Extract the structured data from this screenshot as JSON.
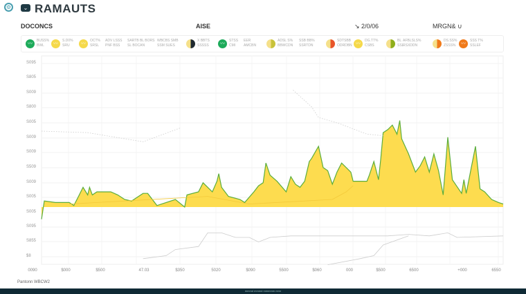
{
  "header": {
    "brand": "RAMAUTS",
    "icons": [
      "gear-icon",
      "chevron-down-icon"
    ]
  },
  "subheader": {
    "left": "DOCONCS",
    "center": "AISE",
    "date": "↘ 2/0/06",
    "right": "MRGN& ∪"
  },
  "legend": [
    {
      "icon": "wave",
      "color": "#1daa5a",
      "l1": "BUSS%",
      "l2": "BWL"
    },
    {
      "icon": "wave",
      "color": "#f5d94a",
      "l1": "S.D0%",
      "l2": "SRU"
    },
    {
      "icon": "wave",
      "color": "#f5d94a",
      "l1": "OCT%",
      "l2": "SRSL"
    },
    {
      "icon": "",
      "color": "",
      "l1": "ADV LSSS",
      "l2": "PNF BSS"
    },
    {
      "icon": "",
      "color": "",
      "l1": "SARTB BL BORS",
      "l2": "SL BOCAN"
    },
    {
      "icon": "",
      "color": "",
      "l1": "WBCBS SMB",
      "l2": "SSM SUES"
    },
    {
      "icon": "half",
      "color": "#1f2a30",
      "l1": "X BBTS",
      "l2": "SSSSS"
    },
    {
      "icon": "wave",
      "color": "#1daa5a",
      "l1": "STSS",
      "l2": "CMI"
    },
    {
      "icon": "",
      "color": "",
      "l1": "EER",
      "l2": "AMCBN"
    },
    {
      "icon": "half",
      "color": "#c8c23a",
      "l1": "ADSL S%",
      "l2": "BBWCDN"
    },
    {
      "icon": "",
      "color": "",
      "l1": "SSB BB%",
      "l2": "SSRTDN"
    },
    {
      "icon": "half",
      "color": "#e8552a",
      "l1": "SDTSBB",
      "l2": "ODRDBN"
    },
    {
      "icon": "wave",
      "color": "#f5d94a",
      "l1": "DG.TT%",
      "l2": "CSBS"
    },
    {
      "icon": "half",
      "color": "#8fae1b",
      "l1": "BL",
      "l2": "SSL"
    },
    {
      "icon": "",
      "color": "",
      "l1": "AFBLSLS%",
      "l2": "RSXDDN"
    },
    {
      "icon": "half",
      "color": "#f07a1a",
      "l1": "DS.SS%",
      "l2": "ZSSS%"
    },
    {
      "icon": "wave",
      "color": "#f07a1a",
      "l1": "SSS T%",
      "l2": "SSLEF"
    }
  ],
  "chart_data": {
    "type": "area",
    "title": "",
    "xlim": [
      0,
      100
    ],
    "ylim": [
      -38,
      100
    ],
    "grid": true,
    "yticks": [
      "S095",
      "S805",
      "S009",
      "S800",
      "S005",
      "S009",
      "S009",
      "S509",
      "S009",
      "S005",
      "S005",
      "S095",
      "S855",
      "$8"
    ],
    "xticks": [
      "0090",
      "$000",
      "$500",
      "47.03",
      "$350",
      "5020",
      "$090",
      "5500",
      "$060",
      "000",
      "$500",
      "6500",
      "+000",
      "6550"
    ],
    "colors": {
      "fill": "#fddc4f",
      "line": "#5aad3c",
      "secondary": "#cccccc"
    },
    "series": [
      {
        "kind": "main",
        "points": [
          [
            0,
            -8
          ],
          [
            0.6,
            4
          ],
          [
            3,
            3
          ],
          [
            6,
            3
          ],
          [
            7,
            1
          ],
          [
            8,
            7
          ],
          [
            9,
            13
          ],
          [
            10,
            8
          ],
          [
            10.4,
            13
          ],
          [
            11,
            8
          ],
          [
            12,
            10
          ],
          [
            15,
            10
          ],
          [
            16.5,
            8
          ],
          [
            18,
            5
          ],
          [
            19.5,
            4
          ],
          [
            22,
            9
          ],
          [
            23,
            9
          ],
          [
            25,
            1
          ],
          [
            27,
            3
          ],
          [
            29,
            5
          ],
          [
            31,
            0
          ],
          [
            31.5,
            8
          ],
          [
            34,
            10
          ],
          [
            35,
            16
          ],
          [
            37,
            10
          ],
          [
            38,
            17
          ],
          [
            38.4,
            22
          ],
          [
            39,
            13
          ],
          [
            40.5,
            7
          ],
          [
            43,
            5
          ],
          [
            44,
            3
          ],
          [
            46,
            10
          ],
          [
            47,
            14
          ],
          [
            48,
            16
          ],
          [
            48.6,
            29
          ],
          [
            49.5,
            21
          ],
          [
            51,
            17
          ],
          [
            53,
            10
          ],
          [
            54,
            20
          ],
          [
            55,
            15
          ],
          [
            56,
            13
          ],
          [
            57,
            17
          ],
          [
            58,
            30
          ],
          [
            58.5,
            32
          ],
          [
            60,
            40
          ],
          [
            61,
            26
          ],
          [
            62,
            24
          ],
          [
            63,
            15
          ],
          [
            64,
            23
          ],
          [
            65,
            29
          ],
          [
            67,
            23
          ],
          [
            67.5,
            17
          ],
          [
            69,
            17
          ],
          [
            70.5,
            17
          ],
          [
            71,
            21
          ],
          [
            72,
            30
          ],
          [
            73,
            18
          ],
          [
            73.5,
            32
          ],
          [
            74,
            49
          ],
          [
            75,
            51
          ],
          [
            76,
            54
          ],
          [
            77,
            48
          ],
          [
            77.6,
            57
          ],
          [
            78,
            45
          ],
          [
            79.5,
            35
          ],
          [
            81,
            23
          ],
          [
            82,
            27
          ],
          [
            83,
            33
          ],
          [
            84,
            23
          ],
          [
            85,
            35
          ],
          [
            86,
            24
          ],
          [
            87,
            8
          ],
          [
            88,
            46
          ],
          [
            89,
            18
          ],
          [
            91,
            9
          ],
          [
            91.5,
            18
          ],
          [
            92,
            9
          ],
          [
            94,
            40
          ],
          [
            94.5,
            26
          ],
          [
            95,
            12
          ],
          [
            96,
            10
          ],
          [
            97.5,
            5
          ],
          [
            99,
            3
          ],
          [
            100,
            2
          ]
        ]
      },
      {
        "kind": "average",
        "points": [
          [
            6,
            2
          ],
          [
            36,
            7
          ],
          [
            45,
            2
          ],
          [
            63,
            5
          ],
          [
            66,
            10
          ],
          [
            67.5,
            14
          ]
        ]
      },
      {
        "kind": "dotted",
        "points": [
          [
            0,
            50
          ],
          [
            10,
            49
          ],
          [
            22,
            43
          ],
          [
            30,
            52
          ]
        ]
      },
      {
        "kind": "dotted",
        "points": [
          [
            54.5,
            77
          ],
          [
            58.5,
            66
          ],
          [
            60,
            59
          ],
          [
            64.5,
            55
          ],
          [
            70.5,
            48
          ],
          [
            74,
            47
          ]
        ]
      },
      {
        "kind": "faint",
        "points": [
          [
            22,
            -34
          ],
          [
            27,
            -32
          ],
          [
            29,
            -28
          ],
          [
            34,
            -26
          ],
          [
            36,
            -17
          ],
          [
            39,
            -17
          ],
          [
            42,
            -20
          ],
          [
            45,
            -20
          ],
          [
            47,
            -23
          ],
          [
            49.5,
            -20
          ],
          [
            54,
            -19
          ],
          [
            57,
            -19
          ],
          [
            61.5,
            -19
          ],
          [
            66,
            -19
          ],
          [
            69,
            -19
          ],
          [
            75,
            -19
          ],
          [
            79.5,
            -18
          ],
          [
            84,
            -19
          ],
          [
            88,
            -17
          ],
          [
            90,
            -20
          ],
          [
            100,
            -19
          ]
        ]
      },
      {
        "kind": "faint",
        "points": [
          [
            62,
            -38
          ],
          [
            69,
            -34
          ],
          [
            72,
            -32
          ],
          [
            74,
            -25
          ],
          [
            79.5,
            -19
          ]
        ]
      }
    ]
  },
  "footer": {
    "label": "Pantonn WBCW2",
    "bar_text": "mmmd mmmd mmmmm mmr"
  }
}
